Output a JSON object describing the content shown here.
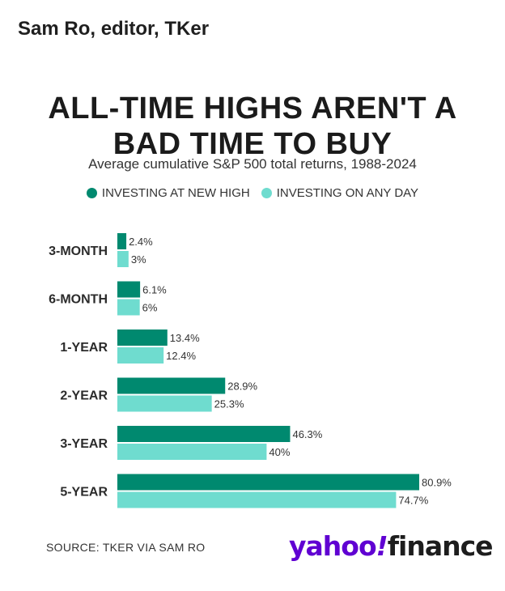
{
  "byline": "Sam Ro, editor, TKer",
  "source": "SOURCE: TKER VIA SAM RO",
  "logo": {
    "brand": "yahoo",
    "bang": "!",
    "section": "finance",
    "brand_color": "#6001d2"
  },
  "colors": {
    "new_high": "#00896f",
    "any_day": "#6fdccf"
  },
  "chart_data": {
    "type": "bar",
    "orientation": "horizontal",
    "title_lines": [
      "ALL-TIME HIGHS AREN'T A",
      "BAD TIME TO BUY"
    ],
    "subtitle": "Average cumulative S&P 500 total returns, 1988-2024",
    "categories": [
      "3-MONTH",
      "6-MONTH",
      "1-YEAR",
      "2-YEAR",
      "3-YEAR",
      "5-YEAR"
    ],
    "series": [
      {
        "name": "INVESTING AT NEW HIGH",
        "values": [
          2.4,
          6.1,
          13.4,
          28.9,
          46.3,
          80.9
        ],
        "labels": [
          "2.4%",
          "6.1%",
          "13.4%",
          "28.9%",
          "46.3%",
          "80.9%"
        ],
        "color": "#00896f"
      },
      {
        "name": "INVESTING ON ANY DAY",
        "values": [
          3,
          6,
          12.4,
          25.3,
          40,
          74.7
        ],
        "labels": [
          "3%",
          "6%",
          "12.4%",
          "25.3%",
          "40%",
          "74.7%"
        ],
        "color": "#6fdccf"
      }
    ],
    "xlim": [
      0,
      80.9
    ],
    "legend_position": "top-center",
    "grid": false
  }
}
